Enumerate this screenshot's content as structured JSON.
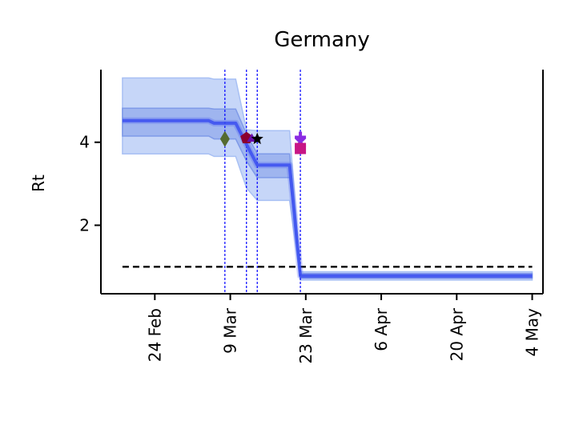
{
  "chart_data": {
    "type": "line",
    "title": "Germany",
    "xlabel": "",
    "ylabel": "Rt",
    "x_axis": "date",
    "xlim": [
      "2020-02-14",
      "2020-05-06"
    ],
    "ylim": [
      0.35,
      5.75
    ],
    "yticks": [
      2,
      4
    ],
    "xticks": [
      {
        "date": "2020-02-24",
        "label": "24 Feb"
      },
      {
        "date": "2020-03-09",
        "label": "9 Mar"
      },
      {
        "date": "2020-03-23",
        "label": "23 Mar"
      },
      {
        "date": "2020-04-06",
        "label": "6 Apr"
      },
      {
        "date": "2020-04-20",
        "label": "20 Apr"
      },
      {
        "date": "2020-05-04",
        "label": "4 May"
      }
    ],
    "series": [
      {
        "points": [
          {
            "x": "2020-02-18",
            "y": 4.52
          },
          {
            "x": "2020-03-05",
            "y": 4.52
          },
          {
            "x": "2020-03-06",
            "y": 4.46
          },
          {
            "x": "2020-03-10",
            "y": 4.46
          },
          {
            "x": "2020-03-12",
            "y": 3.95
          },
          {
            "x": "2020-03-14",
            "y": 3.45
          },
          {
            "x": "2020-03-20",
            "y": 3.45
          },
          {
            "x": "2020-03-22",
            "y": 0.78
          },
          {
            "x": "2020-05-04",
            "y": 0.78
          }
        ],
        "band_50": [
          {
            "x": "2020-02-18",
            "lo": 4.15,
            "hi": 4.82
          },
          {
            "x": "2020-03-05",
            "lo": 4.15,
            "hi": 4.82
          },
          {
            "x": "2020-03-06",
            "lo": 4.08,
            "hi": 4.8
          },
          {
            "x": "2020-03-10",
            "lo": 4.08,
            "hi": 4.8
          },
          {
            "x": "2020-03-12",
            "lo": 3.55,
            "hi": 4.2
          },
          {
            "x": "2020-03-14",
            "lo": 3.15,
            "hi": 3.72
          },
          {
            "x": "2020-03-20",
            "lo": 3.15,
            "hi": 3.72
          },
          {
            "x": "2020-03-22",
            "lo": 0.73,
            "hi": 0.83
          },
          {
            "x": "2020-05-04",
            "lo": 0.73,
            "hi": 0.83
          }
        ],
        "band_95": [
          {
            "x": "2020-02-18",
            "lo": 3.72,
            "hi": 5.55
          },
          {
            "x": "2020-03-05",
            "lo": 3.72,
            "hi": 5.55
          },
          {
            "x": "2020-03-06",
            "lo": 3.66,
            "hi": 5.52
          },
          {
            "x": "2020-03-10",
            "lo": 3.66,
            "hi": 5.52
          },
          {
            "x": "2020-03-12",
            "lo": 2.9,
            "hi": 4.3
          },
          {
            "x": "2020-03-14",
            "lo": 2.6,
            "hi": 4.28
          },
          {
            "x": "2020-03-20",
            "lo": 2.6,
            "hi": 4.28
          },
          {
            "x": "2020-03-22",
            "lo": 0.68,
            "hi": 0.88
          },
          {
            "x": "2020-05-04",
            "lo": 0.68,
            "hi": 0.88
          }
        ]
      }
    ],
    "reference_line": {
      "y": 1,
      "style": "dashed"
    },
    "intervention_lines": [
      "2020-03-08",
      "2020-03-12",
      "2020-03-14",
      "2020-03-22"
    ],
    "markers": [
      {
        "x": "2020-03-08",
        "y": 4.08,
        "shape": "diamond"
      },
      {
        "x": "2020-03-12",
        "y": 4.1,
        "shape": "pentagon"
      },
      {
        "x": "2020-03-13",
        "y": 4.08,
        "shape": "triangle"
      },
      {
        "x": "2020-03-14",
        "y": 4.08,
        "shape": "star"
      },
      {
        "x": "2020-03-22",
        "y": 4.12,
        "shape": "plus"
      },
      {
        "x": "2020-03-22",
        "y": 4.0,
        "shape": "cross"
      },
      {
        "x": "2020-03-22",
        "y": 3.85,
        "shape": "square"
      }
    ],
    "grid": false,
    "colors": {
      "line": "#3b4ff0",
      "band_50": "#7f9ae8",
      "band_95": "#a8c0f4",
      "reference": "#000000",
      "intervention": "#0000ff",
      "diamond": "#556b2f",
      "pentagon": "#8b0030",
      "triangle": "#6a0dad",
      "star": "#000000",
      "plus": "#8a2be2",
      "cross": "#8a2be2",
      "square": "#c71585"
    }
  }
}
